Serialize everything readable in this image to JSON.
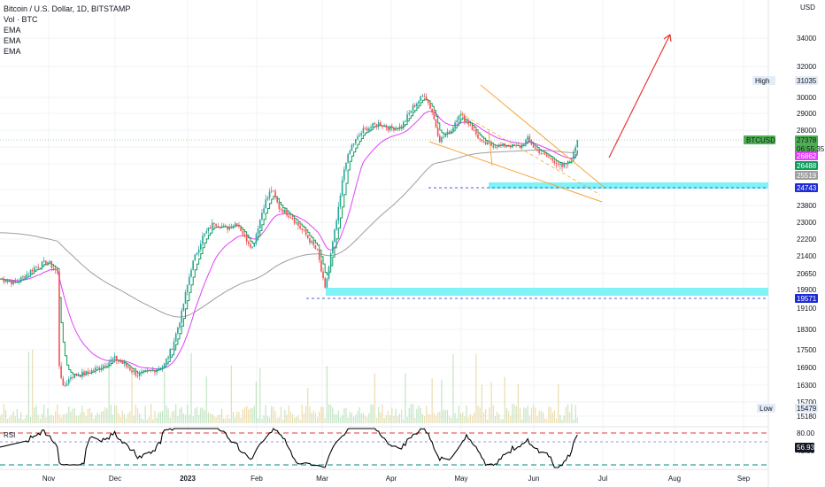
{
  "legend": {
    "title": "Bitcoin / U.S. Dollar, 1D, BITSTAMP",
    "volume": "Vol · BTC",
    "ema1": "EMA",
    "ema2": "EMA",
    "ema3": "EMA"
  },
  "rsi_label": "RSI",
  "axis_title": "USD",
  "colors": {
    "up": "#26a69a",
    "down": "#ef5350",
    "ema_fast": "#0c9d58",
    "ema_mid": "#e040fb",
    "ema_slow": "#9e9e9e",
    "zone": "#7ff3f8",
    "wedge": "#f7a53a",
    "arrow": "#e53935",
    "rsi_line": "#000000",
    "rsi_band_red": "#e53935",
    "rsi_band_teal": "#00897b"
  },
  "chart_data": {
    "type": "candlestick",
    "symbol": "BTCUSD",
    "y_ticks": [
      "34000",
      "32000",
      "30000",
      "29000",
      "28000",
      "26800",
      "25400",
      "24400",
      "23800",
      "23000",
      "22200",
      "21400",
      "20650",
      "19900",
      "19100",
      "18300",
      "17500",
      "16900",
      "16300",
      "15700",
      "15180"
    ],
    "x_ticks": [
      "Nov",
      "Dec",
      "2023",
      "Feb",
      "Mar",
      "Apr",
      "May",
      "Jun",
      "Jul",
      "Aug",
      "Sep"
    ],
    "price_tags": [
      {
        "label": "High",
        "value": "31035",
        "color": "#e3ecf7",
        "text": "#131722"
      },
      {
        "label": "BTCUSD",
        "value": "27378",
        "extra": "06:55:35",
        "color": "#4caf50",
        "text": "#131722"
      },
      {
        "label": "",
        "value": "26862",
        "color": "#e040fb",
        "text": "#ffffff"
      },
      {
        "label": "",
        "value": "26488",
        "color": "#0c9d58",
        "text": "#ffffff"
      },
      {
        "label": "",
        "value": "25519",
        "color": "#9e9e9e",
        "text": "#ffffff"
      },
      {
        "label": "",
        "value": "24743",
        "color": "#1e2bd6",
        "text": "#ffffff"
      },
      {
        "label": "",
        "value": "19571",
        "color": "#1e2bd6",
        "text": "#ffffff"
      },
      {
        "label": "Low",
        "value": "15479",
        "color": "#e3ecf7",
        "text": "#131722"
      }
    ],
    "support_levels": [
      24743,
      19571
    ],
    "rsi": {
      "value": "56.93",
      "ticks": [
        "80.00",
        "40.00"
      ],
      "overbought": 80,
      "oversold": 40
    }
  }
}
